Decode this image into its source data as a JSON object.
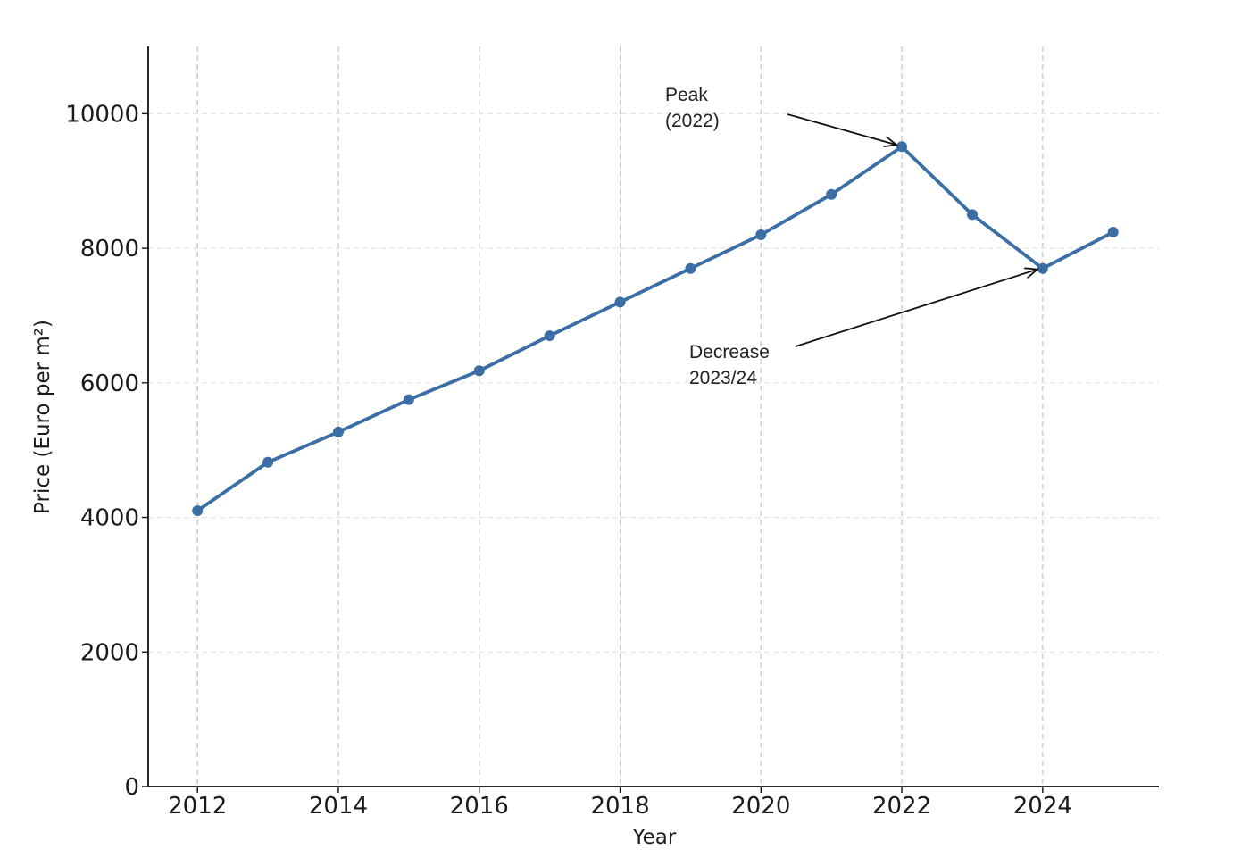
{
  "chart_data": {
    "type": "line",
    "title": "",
    "xlabel": "Year",
    "ylabel": "Price (Euro per m²)",
    "x": [
      2012,
      2013,
      2014,
      2015,
      2016,
      2017,
      2018,
      2019,
      2020,
      2021,
      2022,
      2023,
      2024,
      2025
    ],
    "series": [
      {
        "values": [
          4100,
          4820,
          5270,
          5750,
          6180,
          6700,
          7200,
          7700,
          8200,
          8800,
          9510,
          8500,
          7700,
          8240
        ]
      }
    ],
    "xticks": [
      "2012",
      "2014",
      "2016",
      "2018",
      "2020",
      "2022",
      "2024"
    ],
    "yticks": [
      "0",
      "2000",
      "4000",
      "6000",
      "8000",
      "10000"
    ],
    "xlim": [
      2011.3,
      2025.65
    ],
    "ylim": [
      0,
      11000
    ],
    "grid": true,
    "line_color": "#3a6ea5",
    "annotations": [
      {
        "lines": [
          "Peak",
          "(2022)"
        ],
        "target_x": 2022,
        "target_y": 9510
      },
      {
        "lines": [
          "Decrease",
          "2023/24"
        ],
        "target_x": 2024,
        "target_y": 7700
      }
    ]
  }
}
